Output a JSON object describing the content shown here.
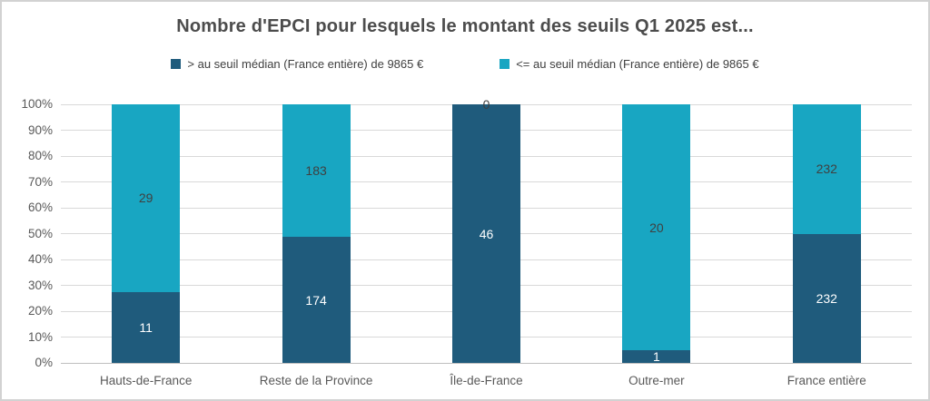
{
  "title": "Nombre d'EPCI pour lesquels le montant des seuils Q1 2025 est...",
  "chart_data": {
    "type": "bar",
    "subtype": "stacked-100-percent",
    "title": "Nombre d'EPCI pour lesquels le montant des seuils Q1 2025 est...",
    "categories": [
      "Hauts-de-France",
      "Reste de la Province",
      "Île-de-France",
      "Outre-mer",
      "France entière"
    ],
    "series": [
      {
        "name": "> au seuil médian (France entière) de 9865 €",
        "color": "#1f5b7c",
        "label_color": "#ffffff",
        "values": [
          11,
          174,
          46,
          1,
          232
        ]
      },
      {
        "name": "<= au seuil médian (France entière) de 9865 €",
        "color": "#18a6c2",
        "label_color": "#404040",
        "values": [
          29,
          183,
          0,
          20,
          232
        ]
      }
    ],
    "y_ticks": [
      "0%",
      "10%",
      "20%",
      "30%",
      "40%",
      "50%",
      "60%",
      "70%",
      "80%",
      "90%",
      "100%"
    ],
    "ylim": [
      0,
      100
    ],
    "ylabel": "",
    "xlabel": "",
    "grid": true,
    "legend_position": "top"
  }
}
